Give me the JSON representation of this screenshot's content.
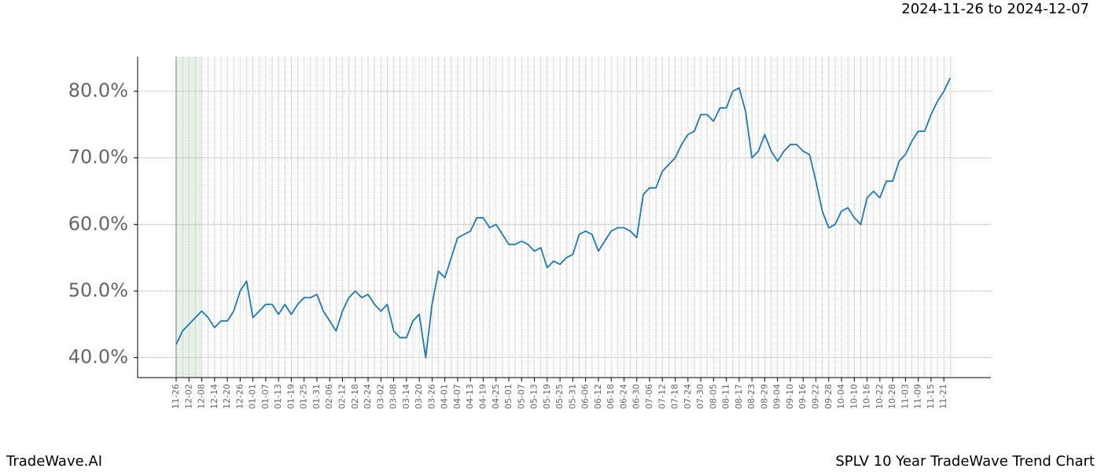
{
  "chart_data": {
    "type": "line",
    "subtitle": "2024-11-26 to 2024-12-07",
    "footer_left": "TradeWave.AI",
    "footer_right": "SPLV 10 Year TradeWave Trend Chart",
    "categories": [
      "11-26",
      null,
      "12-02",
      null,
      "12-08",
      null,
      "12-14",
      null,
      "12-20",
      null,
      "12-26",
      null,
      "01-01",
      null,
      "01-07",
      null,
      "01-13",
      null,
      "01-19",
      null,
      "01-25",
      null,
      "01-31",
      null,
      "02-06",
      null,
      "02-12",
      null,
      "02-18",
      null,
      "02-24",
      null,
      "03-02",
      null,
      "03-08",
      null,
      "03-14",
      null,
      "03-20",
      null,
      "03-26",
      null,
      "04-01",
      null,
      "04-07",
      null,
      "04-13",
      null,
      "04-19",
      null,
      "04-25",
      null,
      "05-01",
      null,
      "05-07",
      null,
      "05-13",
      null,
      "05-19",
      null,
      "05-25",
      null,
      "05-31",
      null,
      "06-06",
      null,
      "06-12",
      null,
      "06-18",
      null,
      "06-24",
      null,
      "06-30",
      null,
      "07-06",
      null,
      "07-12",
      null,
      "07-18",
      null,
      "07-24",
      null,
      "07-30",
      null,
      "08-05",
      null,
      "08-11",
      null,
      "08-17",
      null,
      "08-23",
      null,
      "08-29",
      null,
      "09-04",
      null,
      "09-10",
      null,
      "09-16",
      null,
      "09-22",
      null,
      "09-28",
      null,
      "10-04",
      null,
      "10-10",
      null,
      "10-16",
      null,
      "10-22",
      null,
      "10-28",
      null,
      "11-03",
      null,
      "11-09",
      null,
      "11-15",
      null,
      "11-21",
      null
    ],
    "values": [
      42,
      44,
      45,
      46,
      47,
      46,
      44.5,
      45.5,
      45.5,
      47,
      50,
      51.5,
      46,
      47,
      48,
      48,
      46.5,
      48,
      46.5,
      48,
      49,
      49,
      49.5,
      47,
      45.5,
      44,
      47,
      49,
      50,
      49,
      49.5,
      48,
      47,
      48,
      44,
      43,
      43,
      45.5,
      46.5,
      40,
      48,
      53,
      52,
      55,
      58,
      58.5,
      59,
      61,
      61,
      59.5,
      60,
      58.5,
      57,
      57,
      57.5,
      57,
      56,
      56.5,
      53.5,
      54.5,
      54,
      55,
      55.5,
      58.5,
      59,
      58.5,
      56,
      57.5,
      59,
      59.5,
      59.5,
      59,
      58,
      64.5,
      65.5,
      65.5,
      68,
      69,
      70,
      72,
      73.5,
      74,
      76.5,
      76.5,
      75.5,
      77.5,
      77.5,
      80,
      80.5,
      77,
      70,
      71,
      73.5,
      71,
      69.5,
      71,
      72,
      72,
      71,
      70.5,
      66.5,
      62,
      59.5,
      60,
      62,
      62.5,
      61,
      60,
      64,
      65,
      64,
      66.5,
      66.5,
      69.5,
      70.5,
      72.5,
      74,
      74,
      76.5,
      78.5,
      80,
      82
    ],
    "color": "#1f77b4",
    "ylim": [
      37,
      85.2
    ],
    "yticks": [
      {
        "value": 40,
        "label": "40.0%"
      },
      {
        "value": 50,
        "label": "50.0%"
      },
      {
        "value": 60,
        "label": "60.0%"
      },
      {
        "value": 70,
        "label": "70.0%"
      },
      {
        "value": 80,
        "label": "80.0%"
      }
    ],
    "grid": true
  }
}
